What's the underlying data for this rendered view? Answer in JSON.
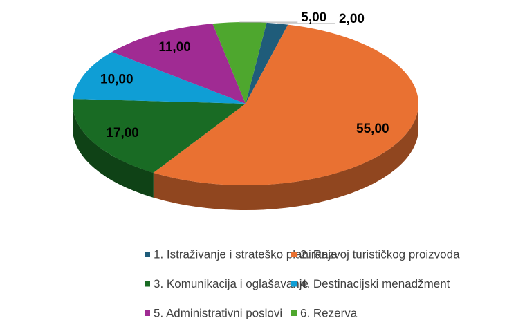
{
  "chart_data": {
    "type": "pie",
    "categories": [
      "1. Istraživanje i strateško planiranje",
      "2. Razvoj turističkog proizvoda",
      "3. Komunikacija i oglašavanje",
      "4. Destinacijski menadžment",
      "5. Administrativni poslovi",
      "6. Rezerva"
    ],
    "values": [
      2,
      55,
      17,
      10,
      11,
      5
    ],
    "value_labels": [
      "2,00",
      "55,00",
      "17,00",
      "10,00",
      "11,00",
      "5,00"
    ],
    "colors": [
      "#1f5c7a",
      "#e97132",
      "#196b24",
      "#0f9ed5",
      "#a02b93",
      "#4ea72e"
    ],
    "legend": "bottom"
  }
}
